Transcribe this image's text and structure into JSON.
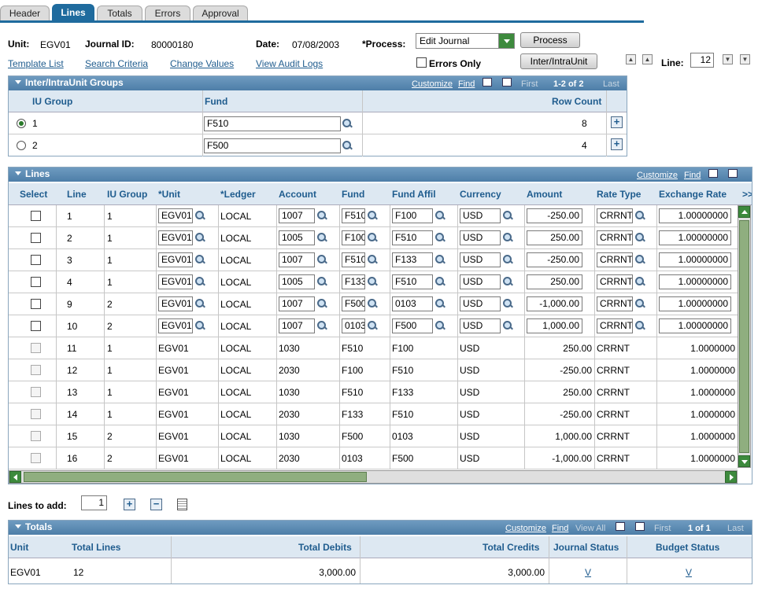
{
  "tabs": [
    {
      "label": "Header",
      "active": false
    },
    {
      "label": "Lines",
      "active": true
    },
    {
      "label": "Totals",
      "active": false
    },
    {
      "label": "Errors",
      "active": false
    },
    {
      "label": "Approval",
      "active": false
    }
  ],
  "header": {
    "unit_label": "Unit:",
    "unit_value": "EGV01",
    "journal_label": "Journal ID:",
    "journal_value": "80000180",
    "date_label": "Date:",
    "date_value": "07/08/2003",
    "process_label": "*Process:",
    "process_value": "Edit Journal",
    "process_button": "Process",
    "links": [
      "Template List",
      "Search Criteria",
      "Change Values",
      "View Audit Logs"
    ],
    "errors_only_label": "Errors Only",
    "interunit_button": "Inter/IntraUnit",
    "line_label": "Line:",
    "line_value": "12"
  },
  "iu_groups": {
    "title": "Inter/IntraUnit Groups",
    "customize": "Customize",
    "find": "Find",
    "first": "First",
    "range": "1-2 of 2",
    "last": "Last",
    "columns": [
      "IU Group",
      "Fund",
      "Row Count"
    ],
    "rows": [
      {
        "group": "1",
        "fund": "F510",
        "count": "8",
        "selected": true
      },
      {
        "group": "2",
        "fund": "F500",
        "count": "4",
        "selected": false
      }
    ]
  },
  "lines": {
    "title": "Lines",
    "customize": "Customize",
    "find": "Find",
    "columns": [
      "Select",
      "Line",
      "IU Group",
      "*Unit",
      "*Ledger",
      "Account",
      "Fund",
      "Fund Affil",
      "Currency",
      "Amount",
      "Rate Type",
      "Exchange Rate",
      ">>"
    ],
    "editable_rows": [
      {
        "line": "1",
        "group": "1",
        "unit": "EGV01",
        "ledger": "LOCAL",
        "account": "1007",
        "fund": "F510",
        "affil": "F100",
        "currency": "USD",
        "amount": "-250.00",
        "rate": "CRRNT",
        "exch": "1.00000000"
      },
      {
        "line": "2",
        "group": "1",
        "unit": "EGV01",
        "ledger": "LOCAL",
        "account": "1005",
        "fund": "F100",
        "affil": "F510",
        "currency": "USD",
        "amount": "250.00",
        "rate": "CRRNT",
        "exch": "1.00000000"
      },
      {
        "line": "3",
        "group": "1",
        "unit": "EGV01",
        "ledger": "LOCAL",
        "account": "1007",
        "fund": "F510",
        "affil": "F133",
        "currency": "USD",
        "amount": "-250.00",
        "rate": "CRRNT",
        "exch": "1.00000000"
      },
      {
        "line": "4",
        "group": "1",
        "unit": "EGV01",
        "ledger": "LOCAL",
        "account": "1005",
        "fund": "F133",
        "affil": "F510",
        "currency": "USD",
        "amount": "250.00",
        "rate": "CRRNT",
        "exch": "1.00000000"
      },
      {
        "line": "9",
        "group": "2",
        "unit": "EGV01",
        "ledger": "LOCAL",
        "account": "1007",
        "fund": "F500",
        "affil": "0103",
        "currency": "USD",
        "amount": "-1,000.00",
        "rate": "CRRNT",
        "exch": "1.00000000"
      },
      {
        "line": "10",
        "group": "2",
        "unit": "EGV01",
        "ledger": "LOCAL",
        "account": "1007",
        "fund": "0103",
        "affil": "F500",
        "currency": "USD",
        "amount": "1,000.00",
        "rate": "CRRNT",
        "exch": "1.00000000"
      }
    ],
    "readonly_rows": [
      {
        "line": "11",
        "group": "1",
        "unit": "EGV01",
        "ledger": "LOCAL",
        "account": "1030",
        "fund": "F510",
        "affil": "F100",
        "currency": "USD",
        "amount": "250.00",
        "rate": "CRRNT",
        "exch": "1.0000000"
      },
      {
        "line": "12",
        "group": "1",
        "unit": "EGV01",
        "ledger": "LOCAL",
        "account": "2030",
        "fund": "F100",
        "affil": "F510",
        "currency": "USD",
        "amount": "-250.00",
        "rate": "CRRNT",
        "exch": "1.0000000"
      },
      {
        "line": "13",
        "group": "1",
        "unit": "EGV01",
        "ledger": "LOCAL",
        "account": "1030",
        "fund": "F510",
        "affil": "F133",
        "currency": "USD",
        "amount": "250.00",
        "rate": "CRRNT",
        "exch": "1.0000000"
      },
      {
        "line": "14",
        "group": "1",
        "unit": "EGV01",
        "ledger": "LOCAL",
        "account": "2030",
        "fund": "F133",
        "affil": "F510",
        "currency": "USD",
        "amount": "-250.00",
        "rate": "CRRNT",
        "exch": "1.0000000"
      },
      {
        "line": "15",
        "group": "2",
        "unit": "EGV01",
        "ledger": "LOCAL",
        "account": "1030",
        "fund": "F500",
        "affil": "0103",
        "currency": "USD",
        "amount": "1,000.00",
        "rate": "CRRNT",
        "exch": "1.0000000"
      },
      {
        "line": "16",
        "group": "2",
        "unit": "EGV01",
        "ledger": "LOCAL",
        "account": "2030",
        "fund": "0103",
        "affil": "F500",
        "currency": "USD",
        "amount": "-1,000.00",
        "rate": "CRRNT",
        "exch": "1.0000000"
      }
    ]
  },
  "lines_to_add": {
    "label": "Lines to add:",
    "value": "1"
  },
  "totals": {
    "title": "Totals",
    "customize": "Customize",
    "find": "Find",
    "view_all": "View All",
    "first": "First",
    "range": "1 of 1",
    "last": "Last",
    "columns": [
      "Unit",
      "Total Lines",
      "Total Debits",
      "Total Credits",
      "Journal Status",
      "Budget Status"
    ],
    "row": {
      "unit": "EGV01",
      "lines": "12",
      "debits": "3,000.00",
      "credits": "3,000.00",
      "journal_status": "V",
      "budget_status": "V"
    }
  }
}
